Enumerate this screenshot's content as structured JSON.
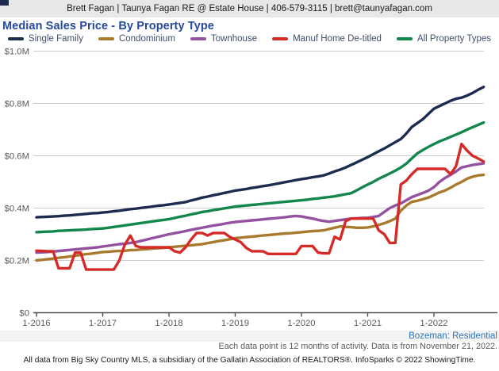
{
  "header": {
    "contact_line": "Brett Fagan | Taunya Fagan RE @ Estate House | 406-579-3115 | brett@taunyafagan.com"
  },
  "title": "Median Sales Price - By Property Type",
  "footer": {
    "market": "Bozeman: Residential",
    "note": "Each data point is 12 months of activity. Data is from November 21, 2022.",
    "attribution": "All data from Big Sky Country MLS, a subsidiary of the Gallatin Association of REALTORS®. InfoSparks © 2022 ShowingTime."
  },
  "colors": {
    "title_text": "#26489e",
    "legend_text": "#3f4e6e",
    "axis_text": "#58585a",
    "grid_line": "#cccccc",
    "axis_line": "#4d4d4d",
    "market_label": "#2f74b5",
    "header_bg": "#e7e7e7",
    "band_bg": "#f3f3f3",
    "corner_mark": "#1d2b50"
  },
  "chart_data": {
    "type": "line",
    "title": "Median Sales Price - By Property Type",
    "x_unit": "months, Jan 2016 through Oct 2022, one point per month (each point = trailing 12 months of activity)",
    "x_tick_labels": [
      "1-2016",
      "1-2017",
      "1-2018",
      "1-2019",
      "1-2020",
      "1-2021",
      "1-2022"
    ],
    "y_unit": "millions of dollars",
    "y_tick_values": [
      0,
      0.2,
      0.4,
      0.6,
      0.8,
      1.0
    ],
    "y_tick_labels": [
      "$0",
      "$0.2M",
      "$0.4M",
      "$0.6M",
      "$0.8M",
      "$1.0M"
    ],
    "ylim": [
      0,
      1.0
    ],
    "grid": "horizontal",
    "legend_position": "top",
    "draw_order": [
      4,
      0,
      1,
      2,
      3
    ],
    "series": [
      {
        "name": "Single Family",
        "color": "#1d2b50",
        "values": [
          0.365,
          0.366,
          0.367,
          0.368,
          0.369,
          0.371,
          0.372,
          0.374,
          0.376,
          0.378,
          0.38,
          0.381,
          0.383,
          0.385,
          0.388,
          0.39,
          0.393,
          0.396,
          0.398,
          0.401,
          0.403,
          0.406,
          0.409,
          0.411,
          0.414,
          0.417,
          0.42,
          0.423,
          0.429,
          0.434,
          0.44,
          0.444,
          0.449,
          0.453,
          0.458,
          0.462,
          0.467,
          0.47,
          0.473,
          0.477,
          0.48,
          0.484,
          0.487,
          0.491,
          0.495,
          0.499,
          0.503,
          0.507,
          0.511,
          0.514,
          0.518,
          0.521,
          0.525,
          0.532,
          0.54,
          0.547,
          0.555,
          0.565,
          0.575,
          0.585,
          0.595,
          0.606,
          0.617,
          0.628,
          0.64,
          0.652,
          0.664,
          0.685,
          0.71,
          0.725,
          0.74,
          0.76,
          0.78,
          0.79,
          0.8,
          0.81,
          0.818,
          0.822,
          0.83,
          0.84,
          0.852,
          0.863
        ]
      },
      {
        "name": "Condominium",
        "color": "#a87a2d",
        "values": [
          0.2,
          0.202,
          0.205,
          0.207,
          0.21,
          0.212,
          0.215,
          0.218,
          0.221,
          0.224,
          0.226,
          0.229,
          0.232,
          0.233,
          0.235,
          0.236,
          0.237,
          0.239,
          0.24,
          0.242,
          0.243,
          0.245,
          0.247,
          0.248,
          0.25,
          0.252,
          0.254,
          0.256,
          0.258,
          0.26,
          0.262,
          0.266,
          0.27,
          0.274,
          0.277,
          0.281,
          0.285,
          0.287,
          0.289,
          0.291,
          0.293,
          0.295,
          0.297,
          0.299,
          0.301,
          0.303,
          0.304,
          0.306,
          0.308,
          0.31,
          0.312,
          0.313,
          0.315,
          0.32,
          0.325,
          0.33,
          0.328,
          0.327,
          0.325,
          0.325,
          0.326,
          0.33,
          0.336,
          0.342,
          0.35,
          0.36,
          0.39,
          0.41,
          0.424,
          0.428,
          0.434,
          0.44,
          0.45,
          0.46,
          0.467,
          0.478,
          0.49,
          0.5,
          0.512,
          0.52,
          0.525,
          0.527
        ]
      },
      {
        "name": "Townhouse",
        "color": "#9351a0",
        "values": [
          0.23,
          0.231,
          0.232,
          0.234,
          0.236,
          0.238,
          0.24,
          0.242,
          0.244,
          0.246,
          0.248,
          0.25,
          0.253,
          0.256,
          0.259,
          0.262,
          0.264,
          0.267,
          0.27,
          0.275,
          0.28,
          0.285,
          0.29,
          0.295,
          0.3,
          0.304,
          0.308,
          0.312,
          0.317,
          0.321,
          0.325,
          0.329,
          0.333,
          0.336,
          0.34,
          0.344,
          0.347,
          0.349,
          0.351,
          0.353,
          0.355,
          0.357,
          0.359,
          0.361,
          0.363,
          0.365,
          0.368,
          0.37,
          0.368,
          0.364,
          0.36,
          0.355,
          0.351,
          0.348,
          0.351,
          0.354,
          0.357,
          0.36,
          0.361,
          0.362,
          0.363,
          0.366,
          0.37,
          0.385,
          0.4,
          0.41,
          0.418,
          0.43,
          0.442,
          0.45,
          0.458,
          0.467,
          0.48,
          0.5,
          0.515,
          0.527,
          0.54,
          0.555,
          0.56,
          0.565,
          0.568,
          0.571
        ]
      },
      {
        "name": "Manuf Home De-titled",
        "color": "#d52b28",
        "values": [
          0.237,
          0.236,
          0.235,
          0.235,
          0.17,
          0.17,
          0.17,
          0.23,
          0.23,
          0.165,
          0.165,
          0.165,
          0.165,
          0.165,
          0.165,
          0.2,
          0.26,
          0.295,
          0.255,
          0.25,
          0.25,
          0.25,
          0.25,
          0.25,
          0.25,
          0.235,
          0.23,
          0.25,
          0.28,
          0.305,
          0.305,
          0.295,
          0.305,
          0.305,
          0.305,
          0.29,
          0.28,
          0.27,
          0.248,
          0.235,
          0.235,
          0.235,
          0.225,
          0.225,
          0.225,
          0.225,
          0.225,
          0.225,
          0.255,
          0.255,
          0.255,
          0.23,
          0.227,
          0.227,
          0.29,
          0.28,
          0.35,
          0.36,
          0.36,
          0.36,
          0.36,
          0.36,
          0.315,
          0.3,
          0.267,
          0.267,
          0.49,
          0.505,
          0.53,
          0.55,
          0.55,
          0.55,
          0.55,
          0.55,
          0.55,
          0.53,
          0.56,
          0.645,
          0.62,
          0.6,
          0.59,
          0.578
        ]
      },
      {
        "name": "All Property Types",
        "color": "#13874b",
        "values": [
          0.308,
          0.309,
          0.31,
          0.311,
          0.313,
          0.314,
          0.315,
          0.316,
          0.317,
          0.318,
          0.32,
          0.321,
          0.322,
          0.325,
          0.328,
          0.331,
          0.334,
          0.337,
          0.34,
          0.343,
          0.346,
          0.349,
          0.352,
          0.355,
          0.358,
          0.362,
          0.367,
          0.371,
          0.376,
          0.38,
          0.385,
          0.388,
          0.392,
          0.395,
          0.399,
          0.402,
          0.406,
          0.408,
          0.41,
          0.412,
          0.414,
          0.416,
          0.418,
          0.42,
          0.422,
          0.424,
          0.426,
          0.428,
          0.43,
          0.432,
          0.435,
          0.437,
          0.44,
          0.442,
          0.445,
          0.449,
          0.453,
          0.457,
          0.468,
          0.479,
          0.49,
          0.5,
          0.512,
          0.522,
          0.532,
          0.543,
          0.555,
          0.57,
          0.59,
          0.609,
          0.622,
          0.634,
          0.645,
          0.655,
          0.663,
          0.672,
          0.681,
          0.69,
          0.7,
          0.709,
          0.718,
          0.727
        ]
      }
    ]
  }
}
